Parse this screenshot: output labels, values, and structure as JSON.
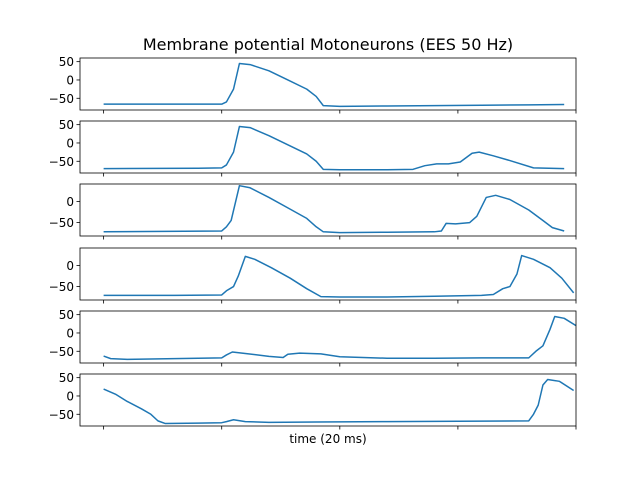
{
  "chart_data": {
    "type": "line",
    "title": "Membrane potential Motoneurons (EES 50 Hz)",
    "xlabel": "time (20 ms)",
    "ylabel": "",
    "xlim": [
      -1,
      20
    ],
    "x_ticks_labeled": false,
    "grid": false,
    "line_color": "#1f77b4",
    "panels": [
      {
        "ylim": [
          -82,
          60
        ],
        "yticks": [
          50,
          0,
          -50
        ],
        "points": [
          [
            0,
            -66
          ],
          [
            5,
            -66
          ],
          [
            5.2,
            -60
          ],
          [
            5.5,
            -25
          ],
          [
            5.75,
            45
          ],
          [
            6.2,
            42
          ],
          [
            7,
            25
          ],
          [
            7.8,
            0
          ],
          [
            8.6,
            -25
          ],
          [
            9,
            -45
          ],
          [
            9.3,
            -70
          ],
          [
            10,
            -72
          ],
          [
            12,
            -71
          ],
          [
            14,
            -70
          ],
          [
            16,
            -69
          ],
          [
            18,
            -68
          ],
          [
            19.5,
            -67
          ]
        ]
      },
      {
        "ylim": [
          -82,
          60
        ],
        "yticks": [
          50,
          0,
          -50
        ],
        "points": [
          [
            0,
            -70
          ],
          [
            4,
            -69
          ],
          [
            5,
            -68
          ],
          [
            5.2,
            -60
          ],
          [
            5.5,
            -25
          ],
          [
            5.75,
            45
          ],
          [
            6.2,
            42
          ],
          [
            7,
            20
          ],
          [
            7.8,
            -5
          ],
          [
            8.6,
            -30
          ],
          [
            9,
            -50
          ],
          [
            9.3,
            -72
          ],
          [
            10,
            -73
          ],
          [
            12,
            -73
          ],
          [
            13.1,
            -72
          ],
          [
            13.6,
            -62
          ],
          [
            14.1,
            -57
          ],
          [
            14.6,
            -57
          ],
          [
            15.1,
            -52
          ],
          [
            15.6,
            -28
          ],
          [
            15.9,
            -25
          ],
          [
            16.5,
            -35
          ],
          [
            17.2,
            -48
          ],
          [
            18.2,
            -68
          ],
          [
            19.5,
            -70
          ]
        ]
      },
      {
        "ylim": [
          -82,
          42
        ],
        "yticks": [
          0,
          -50
        ],
        "points": [
          [
            0,
            -72
          ],
          [
            5,
            -70
          ],
          [
            5.2,
            -60
          ],
          [
            5.4,
            -45
          ],
          [
            5.75,
            38
          ],
          [
            6.2,
            33
          ],
          [
            7,
            10
          ],
          [
            7.8,
            -15
          ],
          [
            8.6,
            -40
          ],
          [
            9,
            -60
          ],
          [
            9.3,
            -72
          ],
          [
            10,
            -74
          ],
          [
            12,
            -73
          ],
          [
            14,
            -72
          ],
          [
            14.3,
            -70
          ],
          [
            14.5,
            -52
          ],
          [
            14.9,
            -53
          ],
          [
            15.5,
            -50
          ],
          [
            15.8,
            -35
          ],
          [
            16.2,
            10
          ],
          [
            16.6,
            15
          ],
          [
            17.2,
            5
          ],
          [
            18,
            -20
          ],
          [
            18.6,
            -45
          ],
          [
            19,
            -62
          ],
          [
            19.5,
            -70
          ]
        ]
      },
      {
        "ylim": [
          -82,
          42
        ],
        "yticks": [
          0,
          -50
        ],
        "points": [
          [
            0,
            -71
          ],
          [
            3,
            -71
          ],
          [
            5,
            -70
          ],
          [
            5.2,
            -60
          ],
          [
            5.5,
            -50
          ],
          [
            5.7,
            -25
          ],
          [
            6,
            22
          ],
          [
            6.4,
            15
          ],
          [
            7.1,
            -5
          ],
          [
            7.9,
            -30
          ],
          [
            8.6,
            -55
          ],
          [
            9.2,
            -74
          ],
          [
            10,
            -75
          ],
          [
            12,
            -75
          ],
          [
            14,
            -73
          ],
          [
            16,
            -71
          ],
          [
            16.5,
            -69
          ],
          [
            16.9,
            -55
          ],
          [
            17.2,
            -50
          ],
          [
            17.5,
            -20
          ],
          [
            17.7,
            24
          ],
          [
            18.2,
            15
          ],
          [
            18.9,
            -5
          ],
          [
            19.4,
            -30
          ],
          [
            19.9,
            -65
          ]
        ]
      },
      {
        "ylim": [
          -82,
          60
        ],
        "yticks": [
          50,
          0,
          -50
        ],
        "points": [
          [
            0,
            -63
          ],
          [
            0.3,
            -70
          ],
          [
            1,
            -72
          ],
          [
            5,
            -68
          ],
          [
            5.2,
            -60
          ],
          [
            5.45,
            -52
          ],
          [
            6,
            -56
          ],
          [
            7,
            -64
          ],
          [
            7.6,
            -67
          ],
          [
            7.8,
            -58
          ],
          [
            8.3,
            -55
          ],
          [
            9.2,
            -57
          ],
          [
            10,
            -65
          ],
          [
            12,
            -69
          ],
          [
            14,
            -69
          ],
          [
            16,
            -68
          ],
          [
            18,
            -68
          ],
          [
            18.3,
            -50
          ],
          [
            18.6,
            -35
          ],
          [
            18.9,
            10
          ],
          [
            19.1,
            45
          ],
          [
            19.5,
            40
          ],
          [
            20,
            20
          ]
        ]
      },
      {
        "ylim": [
          -82,
          60
        ],
        "yticks": [
          50,
          0,
          -50
        ],
        "points": [
          [
            0,
            19
          ],
          [
            0.5,
            5
          ],
          [
            1,
            -15
          ],
          [
            1.6,
            -35
          ],
          [
            2,
            -50
          ],
          [
            2.3,
            -68
          ],
          [
            2.6,
            -75
          ],
          [
            4,
            -74
          ],
          [
            5,
            -73
          ],
          [
            5.2,
            -70
          ],
          [
            5.5,
            -65
          ],
          [
            6,
            -70
          ],
          [
            7,
            -72
          ],
          [
            9,
            -71
          ],
          [
            12,
            -70
          ],
          [
            15,
            -69
          ],
          [
            18,
            -68
          ],
          [
            18.2,
            -50
          ],
          [
            18.4,
            -25
          ],
          [
            18.6,
            30
          ],
          [
            18.8,
            45
          ],
          [
            19.3,
            40
          ],
          [
            19.9,
            15
          ]
        ]
      }
    ]
  }
}
